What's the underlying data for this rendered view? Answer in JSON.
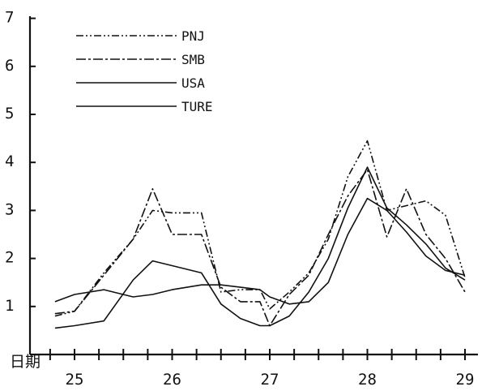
{
  "chart_data": {
    "type": "line",
    "xlabel": "日期",
    "x_ticks": [
      "25",
      "26",
      "27",
      "28",
      "29"
    ],
    "y_ticks": [
      "1",
      "2",
      "3",
      "4",
      "5",
      "6",
      "7"
    ],
    "ylim": [
      0,
      7
    ],
    "xlim": [
      24.75,
      29.1
    ],
    "grid": false,
    "legend_position": "top-left",
    "x": [
      24.8,
      25.0,
      25.3,
      25.6,
      25.8,
      26.0,
      26.3,
      26.5,
      26.7,
      26.9,
      27.0,
      27.2,
      27.4,
      27.6,
      27.8,
      28.0,
      28.2,
      28.4,
      28.6,
      28.8,
      29.0
    ],
    "series": [
      {
        "name": "PNJ",
        "dash": "9,3,2,3,2,3",
        "values": [
          0.8,
          0.9,
          1.7,
          2.4,
          3.0,
          2.95,
          2.95,
          1.3,
          1.35,
          1.35,
          0.95,
          1.3,
          1.7,
          2.4,
          3.7,
          4.45,
          3.0,
          3.1,
          3.2,
          2.9,
          1.6
        ]
      },
      {
        "name": "SMB",
        "dash": "12,3,3,3",
        "values": [
          0.85,
          0.9,
          1.65,
          2.4,
          3.45,
          2.5,
          2.5,
          1.4,
          1.1,
          1.1,
          0.6,
          1.25,
          1.65,
          2.5,
          3.3,
          3.85,
          2.45,
          3.45,
          2.5,
          2.0,
          1.3
        ]
      },
      {
        "name": "USA",
        "dash": "",
        "values": [
          0.55,
          0.6,
          0.7,
          1.55,
          1.95,
          1.85,
          1.7,
          1.05,
          0.75,
          0.6,
          0.6,
          0.8,
          1.3,
          2.0,
          3.05,
          3.9,
          3.05,
          2.7,
          2.3,
          1.8,
          1.55
        ]
      },
      {
        "name": "TURE",
        "dash": "",
        "values": [
          1.1,
          1.25,
          1.35,
          1.2,
          1.25,
          1.35,
          1.45,
          1.45,
          1.4,
          1.35,
          1.2,
          1.05,
          1.1,
          1.5,
          2.5,
          3.25,
          3.0,
          2.55,
          2.05,
          1.75,
          1.65
        ]
      }
    ]
  }
}
